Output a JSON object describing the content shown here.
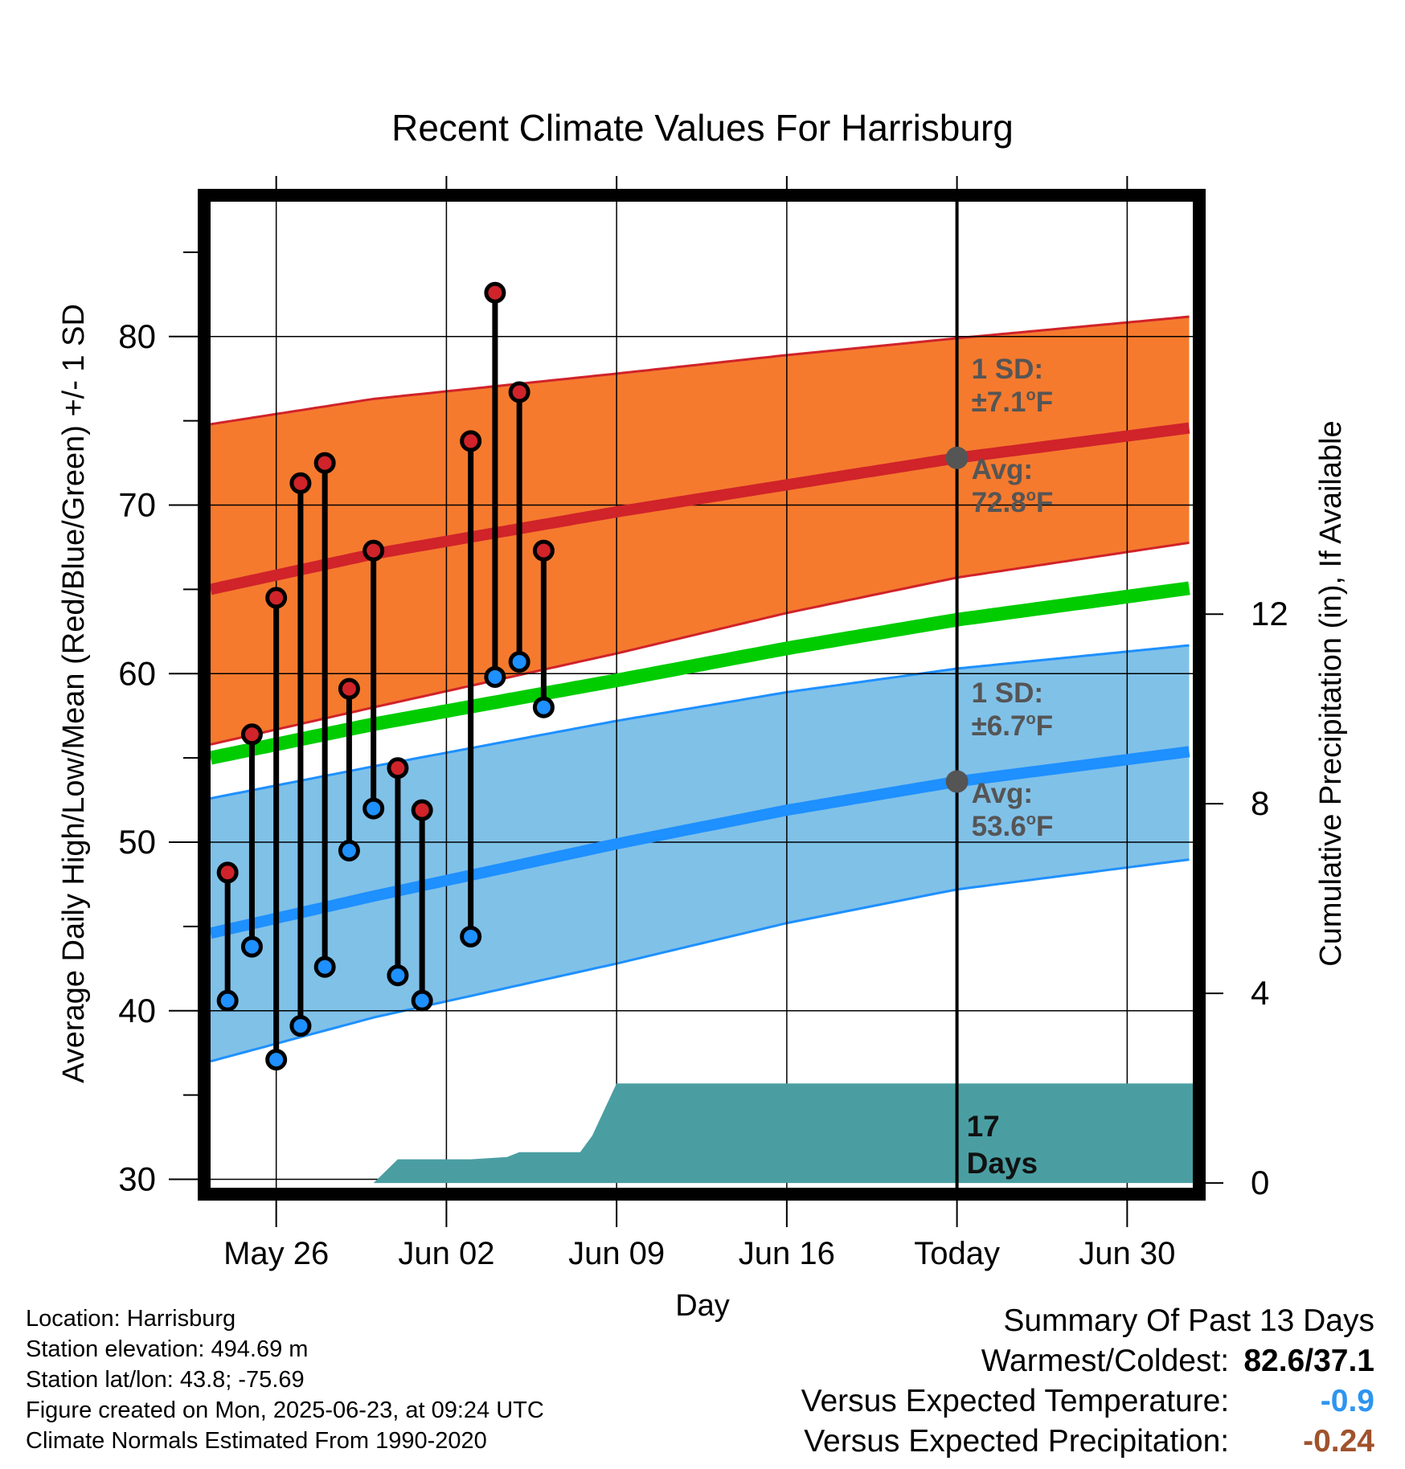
{
  "chart_data": {
    "type": "line",
    "title": "Recent Climate Values For Harrisburg",
    "xlabel": "Day",
    "ylabel": "Average Daily High/Low/Mean (Red/Blue/Green) +/- 1 SD",
    "y2label": "Cumulative Precipitation (in), If Available",
    "x_ticks": [
      "May 26",
      "Jun 02",
      "Jun 09",
      "Jun 16",
      "Today",
      "Jun 30"
    ],
    "x_tick_days": [
      26,
      33,
      40,
      47,
      54,
      61
    ],
    "xlim": [
      23.3,
      63.7
    ],
    "ylim": [
      29.5,
      88
    ],
    "y_ticks": [
      30,
      40,
      50,
      60,
      70,
      80
    ],
    "y2lim": [
      -0.1,
      20.7
    ],
    "y2_ticks": [
      0,
      4,
      8,
      12
    ],
    "today_day": 54,
    "grid": true,
    "normal_high": {
      "days": [
        23.3,
        30,
        40,
        47,
        54,
        63.7
      ],
      "mean": [
        65.0,
        67.1,
        69.6,
        71.2,
        72.8,
        74.6
      ],
      "upper": [
        74.8,
        76.3,
        77.8,
        78.9,
        79.9,
        81.2
      ],
      "lower": [
        55.8,
        58.0,
        61.2,
        63.6,
        65.7,
        67.8
      ]
    },
    "normal_mean": {
      "days": [
        23.3,
        30,
        40,
        47,
        54,
        63.7
      ],
      "values": [
        55.0,
        57.0,
        59.6,
        61.5,
        63.2,
        65.1
      ]
    },
    "normal_low": {
      "days": [
        23.3,
        30,
        40,
        47,
        54,
        63.7
      ],
      "mean": [
        44.6,
        46.8,
        49.9,
        51.9,
        53.6,
        55.4
      ],
      "upper": [
        52.6,
        54.5,
        57.2,
        58.9,
        60.3,
        61.7
      ],
      "lower": [
        37.0,
        39.6,
        42.8,
        45.2,
        47.2,
        49.0
      ]
    },
    "observed": [
      {
        "day": 24,
        "high": 48.2,
        "low": 40.6
      },
      {
        "day": 25,
        "high": 56.4,
        "low": 43.8
      },
      {
        "day": 26,
        "high": 64.5,
        "low": 37.1
      },
      {
        "day": 27,
        "high": 71.3,
        "low": 39.1
      },
      {
        "day": 28,
        "high": 72.5,
        "low": 42.6
      },
      {
        "day": 29,
        "high": 59.1,
        "low": 49.5
      },
      {
        "day": 30,
        "high": 67.3,
        "low": 52.0
      },
      {
        "day": 31,
        "high": 54.4,
        "low": 42.1
      },
      {
        "day": 32,
        "high": 51.9,
        "low": 40.6
      },
      {
        "day": 34,
        "high": 73.8,
        "low": 44.4
      },
      {
        "day": 35,
        "high": 82.6,
        "low": 59.8
      },
      {
        "day": 36,
        "high": 76.7,
        "low": 60.7
      },
      {
        "day": 37,
        "high": 67.3,
        "low": 58.0
      }
    ],
    "precipitation": {
      "days": [
        23.3,
        30.0,
        31.0,
        32.0,
        33.0,
        34.0,
        35.5,
        36.0,
        37.0,
        38.5,
        39.0,
        40.0,
        41.0,
        50.0,
        63.7
      ],
      "values": [
        0,
        0,
        0.5,
        0.5,
        0.5,
        0.5,
        0.55,
        0.65,
        0.65,
        0.65,
        1.0,
        2.1,
        2.1,
        2.1,
        2.1
      ]
    },
    "annotations": {
      "high_sd_label": "1 SD:",
      "high_sd_value": "±7.1",
      "high_avg_label": "Avg:",
      "high_avg_value": "72.8",
      "low_sd_label": "1 SD:",
      "low_sd_value": "±6.7",
      "low_avg_label": "Avg:",
      "low_avg_value": "53.6",
      "degree_mark": "o",
      "unit": "F",
      "days_count": "17",
      "days_word": "Days"
    }
  },
  "colors": {
    "high_band": "#f57a2e",
    "high_line": "#d0232a",
    "low_band": "#80c1e8",
    "low_line": "#1e90ff",
    "mean_line": "#00cc00",
    "precip": "#4a9ea2",
    "annotation": "#555555",
    "cold": "#2e95f0",
    "dry": "#a0522d"
  },
  "info": {
    "location": "Location: Harrisburg",
    "elevation": "Station elevation: 494.69 m",
    "latlon": "Station lat/lon: 43.8; -75.69",
    "created": "Figure created on Mon, 2025-06-23, at 09:24 UTC",
    "normals": "Climate Normals Estimated From 1990-2020"
  },
  "summary": {
    "title": "Summary Of Past 13 Days",
    "warm_cold_label": "Warmest/Coldest:",
    "warm_cold_value": "82.6/37.1",
    "temp_label": "Versus Expected Temperature:",
    "temp_value": "-0.9",
    "precip_label": "Versus Expected Precipitation:",
    "precip_value": "-0.24"
  }
}
